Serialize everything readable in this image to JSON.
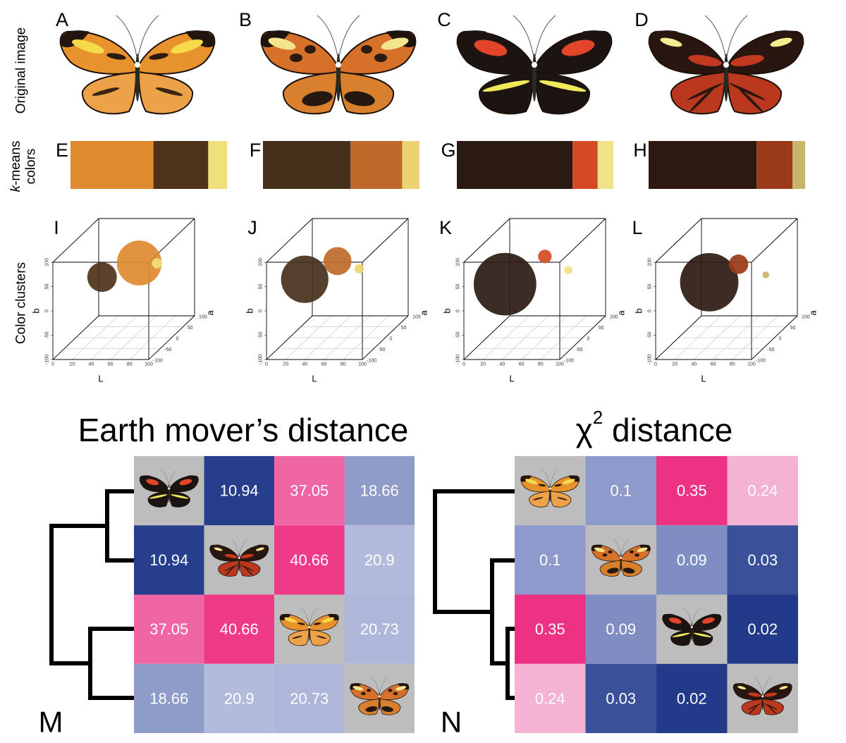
{
  "row_labels": {
    "original_image": "Original image",
    "kmeans_italic": "k",
    "kmeans_rest": "-means",
    "kmeans_line2": "colors",
    "color_clusters": "Color clusters"
  },
  "panels": [
    {
      "image_letter": "A",
      "kmeans_letter": "E",
      "clusters_letter": "I",
      "kmeans": [
        {
          "color": "#e08a30",
          "share": 53
        },
        {
          "color": "#4e3219",
          "share": 35
        },
        {
          "color": "#f0e07a",
          "share": 12
        }
      ],
      "clusters": [
        {
          "L": 59,
          "a": 30,
          "b": 40
        },
        {
          "L": 25,
          "a": 10,
          "b": 20
        },
        {
          "L": 86,
          "a": -5,
          "b": 55
        }
      ]
    },
    {
      "image_letter": "B",
      "kmeans_letter": "F",
      "clusters_letter": "J",
      "kmeans": [
        {
          "color": "#46301c",
          "share": 56
        },
        {
          "color": "#bd6a2a",
          "share": 33
        },
        {
          "color": "#ecd270",
          "share": 11
        }
      ],
      "clusters": [
        {
          "L": 16,
          "a": 0,
          "b": 20
        },
        {
          "L": 43,
          "a": 30,
          "b": 44
        },
        {
          "L": 74,
          "a": -5,
          "b": 44
        }
      ]
    },
    {
      "image_letter": "C",
      "kmeans_letter": "G",
      "clusters_letter": "K",
      "kmeans": [
        {
          "color": "#2a1a12",
          "share": 74
        },
        {
          "color": "#d44a24",
          "share": 16
        },
        {
          "color": "#f0e28a",
          "share": 10
        }
      ],
      "clusters": [
        {
          "L": 19,
          "a": 0,
          "b": 10
        },
        {
          "L": 51,
          "a": 40,
          "b": 49
        },
        {
          "L": 85,
          "a": 0,
          "b": 39
        }
      ]
    },
    {
      "image_letter": "D",
      "kmeans_letter": "H",
      "clusters_letter": "L",
      "kmeans": [
        {
          "color": "#2c1a10",
          "share": 69
        },
        {
          "color": "#9a3a18",
          "share": 23
        },
        {
          "color": "#c8b46a",
          "share": 8
        }
      ],
      "clusters": [
        {
          "L": 32,
          "a": 0,
          "b": 14
        },
        {
          "L": 53,
          "a": 40,
          "b": 33
        },
        {
          "L": 91,
          "a": 0,
          "b": 29
        }
      ]
    }
  ],
  "cluster_axes": {
    "x_label": "L",
    "y_label": "b",
    "z_label": "a",
    "xlim": [
      0,
      100
    ],
    "xticks": [
      0,
      20,
      40,
      60,
      80,
      100
    ],
    "ylim": [
      -100,
      100
    ],
    "yticks": [
      -100,
      -50,
      0,
      50,
      100
    ],
    "zlim": [
      -100,
      100
    ],
    "zticks": [
      -100,
      -50,
      0,
      50,
      100
    ]
  },
  "emd": {
    "title": "Earth mover’s distance",
    "letter": "M",
    "matrix": [
      [
        null,
        10.94,
        37.05,
        18.66
      ],
      [
        10.94,
        null,
        40.66,
        20.9
      ],
      [
        37.05,
        40.66,
        null,
        20.73
      ],
      [
        18.66,
        20.9,
        20.73,
        null
      ]
    ],
    "colors": [
      [
        null,
        "#263e8c",
        "#f066a4",
        "#8f9bc8"
      ],
      [
        "#263e8c",
        null,
        "#ee3a87",
        "#b3bbdd"
      ],
      [
        "#f066a4",
        "#ee3a87",
        null,
        "#aeb6da"
      ],
      [
        "#8f9bc8",
        "#b3bbdd",
        "#aeb6da",
        null
      ]
    ]
  },
  "chi2": {
    "title_symbol": "χ",
    "title_sup": "2",
    "title_rest": " distance",
    "letter": "N",
    "matrix": [
      [
        null,
        0.1,
        0.35,
        0.24
      ],
      [
        0.1,
        null,
        0.09,
        0.03
      ],
      [
        0.35,
        0.09,
        null,
        0.02
      ],
      [
        0.24,
        0.03,
        0.02,
        null
      ]
    ],
    "colors": [
      [
        null,
        "#8d9acb",
        "#ee3283",
        "#f4b3d3"
      ],
      [
        "#8d9acb",
        null,
        "#7f8dc3",
        "#3a519a"
      ],
      [
        "#ee3283",
        "#7f8dc3",
        null,
        "#233a8b"
      ],
      [
        "#f4b3d3",
        "#3a519a",
        "#233a8b",
        null
      ]
    ]
  }
}
